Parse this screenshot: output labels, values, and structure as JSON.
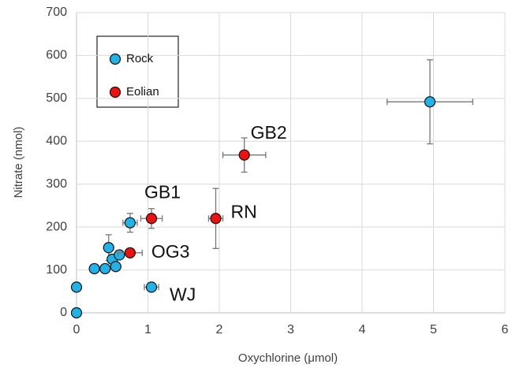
{
  "chart_data": {
    "type": "scatter",
    "x_label": "Oxychlorine (μmol)",
    "y_label": "Nitrate (nmol)",
    "xlim": [
      0,
      6
    ],
    "xticks": [
      0,
      1,
      2,
      3,
      4,
      5,
      6
    ],
    "ylim": [
      0,
      700
    ],
    "yticks": [
      0,
      100,
      200,
      300,
      400,
      500,
      600,
      700
    ],
    "grid": true,
    "legend": "upper left",
    "series": [
      {
        "name": "Rock",
        "color": "#1fb3e8",
        "x": [
          0,
          0,
          0.25,
          0.4,
          0.45,
          0.5,
          0.55,
          0.6,
          0.75,
          1.05,
          4.95
        ],
        "values": [
          0,
          60,
          103,
          103,
          152,
          125,
          108,
          135,
          210,
          60,
          492
        ],
        "xerr": [
          null,
          null,
          null,
          null,
          null,
          null,
          null,
          null,
          0.1,
          0.1,
          0.6
        ],
        "yerr": [
          null,
          null,
          null,
          null,
          30,
          null,
          null,
          null,
          22,
          null,
          98
        ],
        "point_labels": [
          null,
          null,
          null,
          null,
          null,
          null,
          null,
          null,
          null,
          "WJ",
          null
        ]
      },
      {
        "name": "Eolian",
        "color": "#ee1111",
        "x": [
          0.75,
          1.05,
          1.95,
          2.35
        ],
        "values": [
          140,
          220,
          220,
          368
        ],
        "xerr": [
          0.17,
          0.15,
          0.1,
          0.3
        ],
        "yerr": [
          null,
          23,
          70,
          40
        ],
        "point_labels": [
          "OG3",
          "GB1",
          "RN",
          "GB2"
        ]
      }
    ]
  }
}
